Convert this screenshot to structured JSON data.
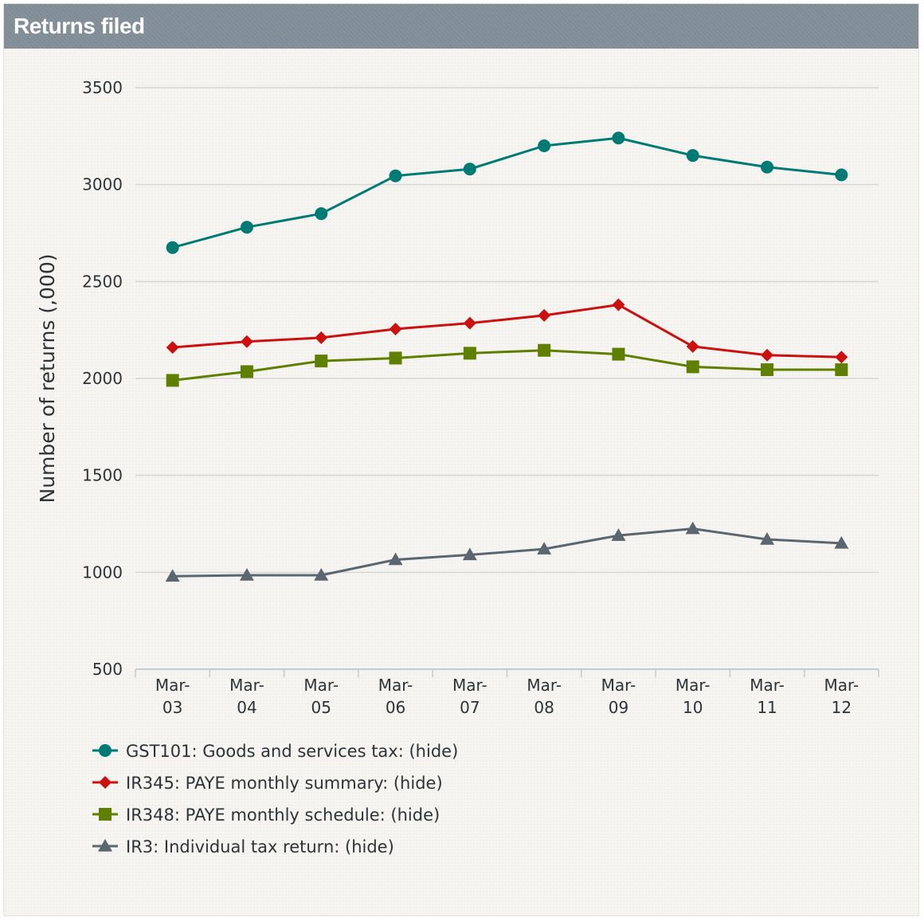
{
  "panel": {
    "title": "Returns filed"
  },
  "chart_data": {
    "type": "line",
    "title": "",
    "xlabel": "",
    "ylabel": "Number of returns (,000)",
    "categories": [
      "Mar-\n03",
      "Mar-\n04",
      "Mar-\n05",
      "Mar-\n06",
      "Mar-\n07",
      "Mar-\n08",
      "Mar-\n09",
      "Mar-\n10",
      "Mar-\n11",
      "Mar-\n12"
    ],
    "ylim": [
      500,
      3500
    ],
    "yticks": [
      500,
      1000,
      1500,
      2000,
      2500,
      3000,
      3500
    ],
    "grid": true,
    "legend_position": "bottom-left",
    "series": [
      {
        "name": "GST101: Goods and services tax",
        "color": "#007a74",
        "marker": "circle",
        "values": [
          2675,
          2780,
          2850,
          3045,
          3080,
          3200,
          3240,
          3150,
          3090,
          3050
        ]
      },
      {
        "name": "IR345: PAYE monthly summary",
        "color": "#cc1010",
        "marker": "diamond",
        "values": [
          2160,
          2190,
          2210,
          2255,
          2285,
          2325,
          2380,
          2165,
          2120,
          2110
        ]
      },
      {
        "name": "IR348: PAYE monthly schedule",
        "color": "#5f7f00",
        "marker": "square",
        "values": [
          1990,
          2035,
          2090,
          2105,
          2130,
          2145,
          2125,
          2060,
          2045,
          2045
        ]
      },
      {
        "name": "IR3: Individual tax return",
        "color": "#5a6670",
        "marker": "triangle",
        "values": [
          980,
          985,
          985,
          1065,
          1090,
          1120,
          1190,
          1225,
          1170,
          1150
        ]
      }
    ]
  },
  "legend": {
    "hide_label": "(hide)"
  }
}
